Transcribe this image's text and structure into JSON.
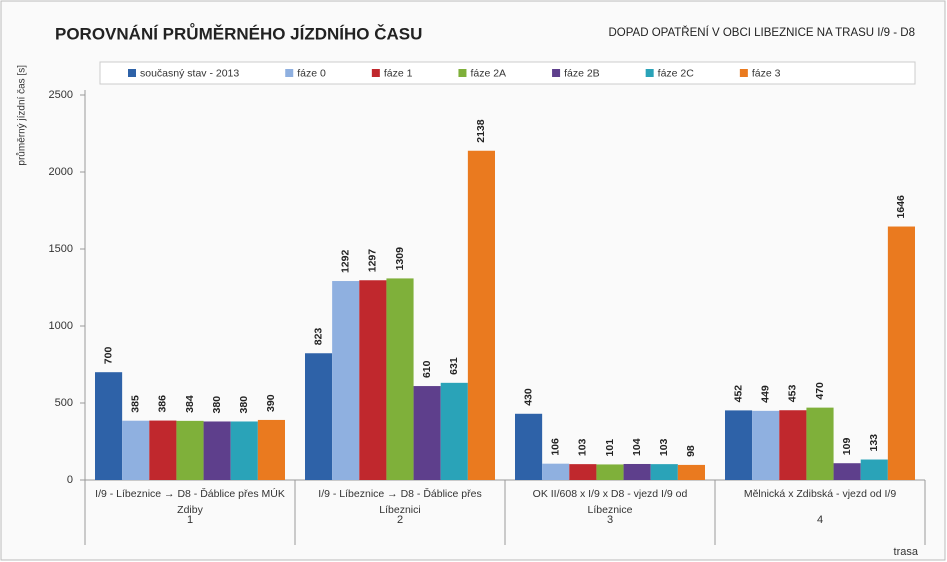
{
  "chart_data": {
    "type": "bar",
    "title": "POROVNÁNÍ PRŮMĚRNÉHO JÍZDNÍHO ČASU",
    "subtitle": "DOPAD OPATŘENÍ V OBCI LIBEZNICE NA TRASU I/9 - D8",
    "y_label": "průměrný jízdní čas [s]",
    "x_label": "trasa",
    "categories": [
      "I/9 - Líbeznice → D8 - Ďáblice přes MÚK Zdiby",
      "I/9 - Líbeznice → D8 - Ďáblice přes Líbeznici",
      "OK II/608 x I/9 x D8 - vjezd I/9 od Líbeznice",
      "Mělnická x Zdibská - vjezd od I/9"
    ],
    "category_groups": [
      "1",
      "2",
      "3",
      "4"
    ],
    "series": [
      {
        "name": "současný stav - 2013",
        "color": "#2e62a8",
        "values": [
          700,
          823,
          430,
          452
        ]
      },
      {
        "name": "fáze 0",
        "color": "#8fb0e0",
        "values": [
          385,
          1292,
          106,
          449
        ]
      },
      {
        "name": "fáze 1",
        "color": "#c0282d",
        "values": [
          386,
          1297,
          103,
          453
        ]
      },
      {
        "name": "fáze 2A",
        "color": "#7fb03a",
        "values": [
          384,
          1309,
          101,
          470
        ]
      },
      {
        "name": "fáze 2B",
        "color": "#5e3f8c",
        "values": [
          380,
          610,
          104,
          109
        ]
      },
      {
        "name": "fáze 2C",
        "color": "#2aa3b8",
        "values": [
          380,
          631,
          103,
          133
        ]
      },
      {
        "name": "fáze 3",
        "color": "#ea7a1f",
        "values": [
          390,
          2138,
          98,
          1646
        ]
      }
    ],
    "ylim": [
      0,
      2500
    ],
    "yticks": [
      0,
      500,
      1000,
      1500,
      2000,
      2500
    ],
    "grid": false
  }
}
